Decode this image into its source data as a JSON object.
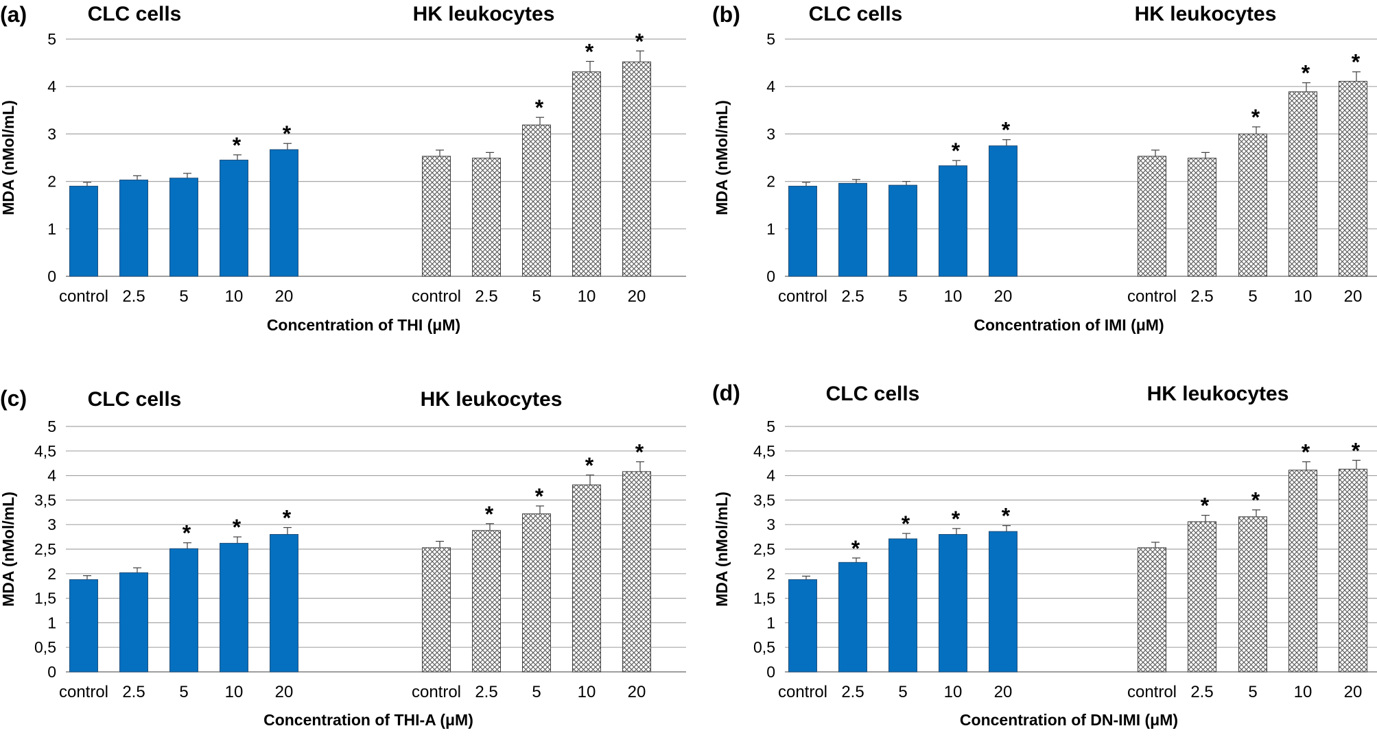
{
  "colors": {
    "clc_fill": "#0570C0",
    "hk_fill": "#ffffff",
    "hk_pattern": "#555555",
    "grid": "#a6a6a6"
  },
  "chart_data": [
    {
      "type": "bar",
      "panel_label": "(a)",
      "groups": [
        "CLC cells",
        "HK leukocytes"
      ],
      "categories": [
        "control",
        "2.5",
        "5",
        "10",
        "20"
      ],
      "xlabel": "Concentration of THI (μM)",
      "ylabel": "MDA (nMol/mL)",
      "ylim": [
        0,
        5
      ],
      "yticks": [
        "0",
        "1",
        "2",
        "3",
        "4",
        "5"
      ],
      "grid": true,
      "series": [
        {
          "values": [
            1.9,
            2.03,
            2.07,
            2.45,
            2.67
          ],
          "errors": [
            0.08,
            0.09,
            0.1,
            0.11,
            0.13
          ],
          "significant": [
            false,
            false,
            false,
            true,
            true
          ]
        },
        {
          "values": [
            2.53,
            2.49,
            3.19,
            4.31,
            4.52
          ],
          "errors": [
            0.13,
            0.12,
            0.16,
            0.22,
            0.23
          ],
          "significant": [
            false,
            false,
            true,
            true,
            true
          ]
        }
      ]
    },
    {
      "type": "bar",
      "panel_label": "(b)",
      "groups": [
        "CLC cells",
        "HK leukocytes"
      ],
      "categories": [
        "control",
        "2.5",
        "5",
        "10",
        "20"
      ],
      "xlabel": "Concentration of IMI (μM)",
      "ylabel": "MDA (nMol/mL)",
      "ylim": [
        0,
        5
      ],
      "yticks": [
        "0",
        "1",
        "2",
        "3",
        "4",
        "5"
      ],
      "grid": true,
      "series": [
        {
          "values": [
            1.9,
            1.96,
            1.92,
            2.33,
            2.75
          ],
          "errors": [
            0.08,
            0.08,
            0.08,
            0.11,
            0.13
          ],
          "significant": [
            false,
            false,
            false,
            true,
            true
          ]
        },
        {
          "values": [
            2.53,
            2.49,
            3.0,
            3.89,
            4.11
          ],
          "errors": [
            0.13,
            0.12,
            0.15,
            0.19,
            0.2
          ],
          "significant": [
            false,
            false,
            true,
            true,
            true
          ]
        }
      ]
    },
    {
      "type": "bar",
      "panel_label": "(c)",
      "groups": [
        "CLC cells",
        "HK leukocytes"
      ],
      "categories": [
        "control",
        "2.5",
        "5",
        "10",
        "20"
      ],
      "xlabel": "Concentration of THI-A (μM)",
      "ylabel": "MDA (nMol/mL)",
      "ylim": [
        0,
        5
      ],
      "yticks": [
        "0",
        "0,5",
        "1",
        "1,5",
        "2",
        "2,5",
        "3",
        "3,5",
        "4",
        "4,5",
        "5"
      ],
      "grid": true,
      "series": [
        {
          "values": [
            1.88,
            2.02,
            2.51,
            2.62,
            2.8
          ],
          "errors": [
            0.08,
            0.1,
            0.12,
            0.13,
            0.14
          ],
          "significant": [
            false,
            false,
            true,
            true,
            true
          ]
        },
        {
          "values": [
            2.53,
            2.88,
            3.22,
            3.81,
            4.08
          ],
          "errors": [
            0.13,
            0.14,
            0.16,
            0.2,
            0.2
          ],
          "significant": [
            false,
            true,
            true,
            true,
            true
          ]
        }
      ]
    },
    {
      "type": "bar",
      "panel_label": "(d)",
      "groups": [
        "CLC cells",
        "HK leukocytes"
      ],
      "categories": [
        "control",
        "2.5",
        "5",
        "10",
        "20"
      ],
      "xlabel": "Concentration of DN-IMI (μM)",
      "ylabel": "MDA (nMol/mL)",
      "ylim": [
        0,
        5
      ],
      "yticks": [
        "0",
        "0,5",
        "1",
        "1,5",
        "2",
        "2,5",
        "3",
        "3,5",
        "4",
        "4,5",
        "5"
      ],
      "grid": true,
      "series": [
        {
          "values": [
            1.88,
            2.23,
            2.71,
            2.8,
            2.86
          ],
          "errors": [
            0.07,
            0.09,
            0.11,
            0.12,
            0.12
          ],
          "significant": [
            false,
            true,
            true,
            true,
            true
          ]
        },
        {
          "values": [
            2.53,
            3.06,
            3.16,
            4.11,
            4.13
          ],
          "errors": [
            0.11,
            0.13,
            0.14,
            0.17,
            0.18
          ],
          "significant": [
            false,
            true,
            true,
            true,
            true
          ]
        }
      ]
    }
  ]
}
